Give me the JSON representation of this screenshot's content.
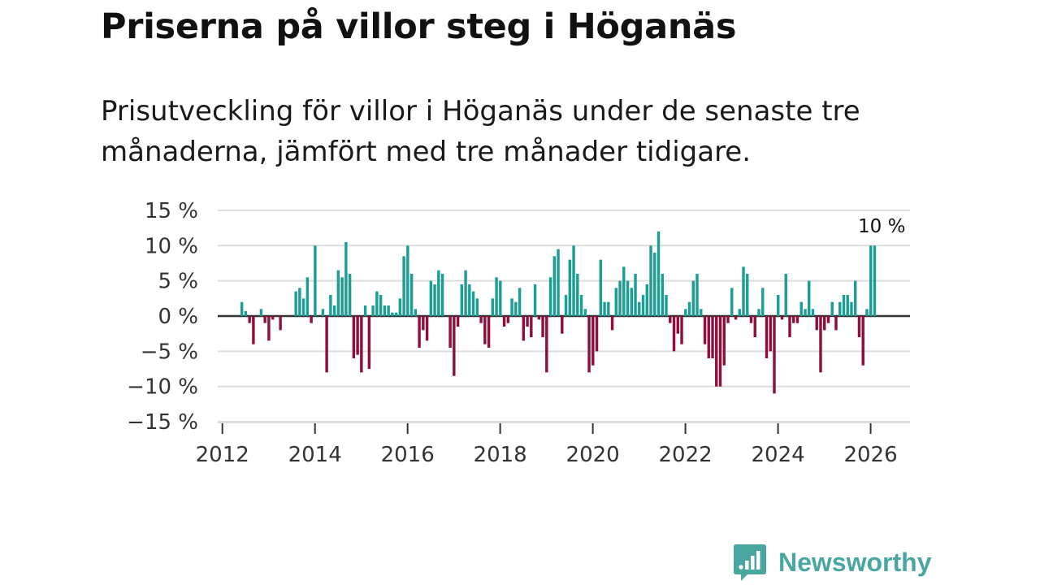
{
  "title": "Priserna på villor steg i Höganäs",
  "subtitle": "Prisutveckling för villor i Höganäs under de senaste tre månaderna, jämfört med tre månader tidigare.",
  "brand": {
    "name": "Newsworthy"
  },
  "colors": {
    "positive": "#1a9e96",
    "negative": "#8e0f3d",
    "grid": "#dddddd",
    "zero": "#333333",
    "brand": "#4aa7a0"
  },
  "chart_data": {
    "type": "bar",
    "title": "Priserna på villor steg i Höganäs",
    "ylabel": "",
    "xlabel": "",
    "ylim": [
      -15,
      15
    ],
    "y_ticks": [
      15,
      10,
      5,
      0,
      -5,
      -10,
      -15
    ],
    "y_tick_labels": [
      "15 %",
      "10 %",
      "5 %",
      "0 %",
      "−5 %",
      "−10 %",
      "−15 %"
    ],
    "x_ticks": [
      2012,
      2014,
      2016,
      2018,
      2020,
      2022,
      2024,
      2026
    ],
    "x_tick_labels": [
      "2012",
      "2014",
      "2016",
      "2018",
      "2020",
      "2022",
      "2024",
      "2026"
    ],
    "x_range": [
      2011.9,
      2026.85
    ],
    "annotation": {
      "text": "10 %",
      "x": 2026.17
    },
    "series": [
      {
        "name": "Prisutveckling",
        "start": 2012.42,
        "step": 0.08333,
        "values": [
          2,
          0.7,
          -1,
          -4,
          null,
          1,
          -1,
          -3.5,
          -0.5,
          null,
          -2,
          null,
          null,
          null,
          3.5,
          4,
          2.5,
          5.5,
          -1,
          10,
          null,
          1,
          -8,
          3,
          1.5,
          6.5,
          5.5,
          10.5,
          6,
          -6,
          -5.5,
          -8,
          1.5,
          -7.5,
          1.5,
          3.5,
          3,
          1.5,
          1.5,
          0.5,
          0.5,
          2.5,
          8.5,
          10,
          6,
          1,
          -4.5,
          -2,
          -3.5,
          5,
          4.5,
          6.5,
          6,
          null,
          -4.5,
          -8.5,
          -1.5,
          4.5,
          6.5,
          4.5,
          3.5,
          2.5,
          -1,
          -4,
          -4.5,
          2.5,
          5.5,
          5,
          -1.5,
          -1,
          2.5,
          2,
          4,
          -3.5,
          -1.5,
          -3,
          4.5,
          -0.5,
          -3,
          -8,
          5.5,
          8.5,
          9.5,
          -2.5,
          3,
          8,
          10,
          6,
          3,
          1,
          -8,
          -7,
          -5,
          8,
          2,
          2,
          -2,
          4,
          5,
          7,
          5,
          4,
          6,
          2,
          3,
          4.5,
          10,
          9,
          12,
          6,
          3,
          -1,
          -5,
          -2.5,
          -4,
          1,
          2,
          5,
          6,
          1,
          -4,
          -6,
          -6,
          -10,
          -10,
          -7,
          -1,
          4,
          -0.5,
          1,
          7,
          6,
          -1,
          -3,
          1,
          4,
          -6,
          -5,
          -11,
          3,
          -0.5,
          6,
          -3,
          -1,
          -1,
          2,
          1,
          5,
          1,
          -2,
          -8,
          -2,
          -1,
          2,
          -2,
          2,
          3,
          3,
          2,
          5,
          -3,
          -7,
          1,
          10,
          10
        ]
      }
    ]
  }
}
